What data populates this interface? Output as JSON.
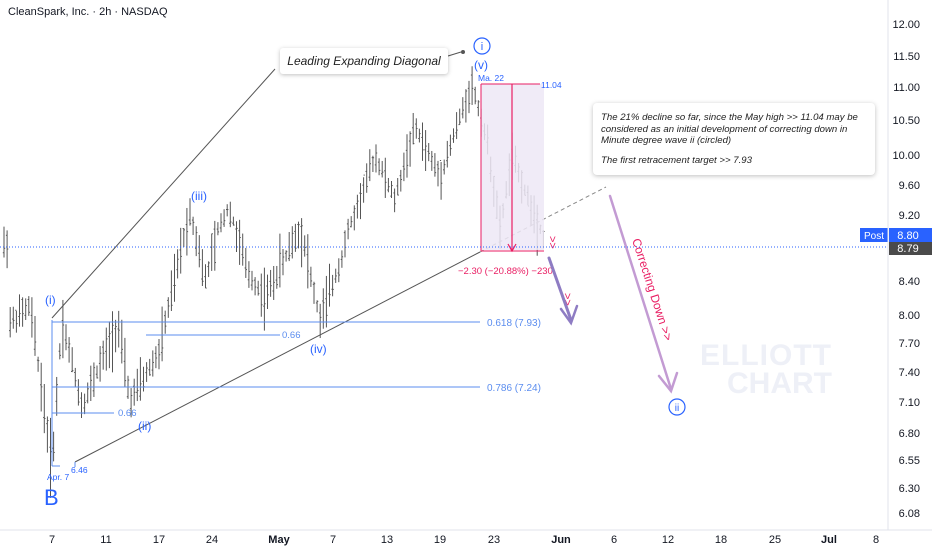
{
  "header": {
    "title": "CleanSpark, Inc. · 2h · NASDAQ"
  },
  "colors": {
    "candle": "#555555",
    "wave_label": "#2962ff",
    "fib_line": "#5b8def",
    "measure": "#e91e63",
    "box_fill": "#ede7f6",
    "projection": "#c39bd3",
    "current_price_bg": "#2962ff",
    "axis_text": "#131722"
  },
  "chart_data": {
    "type": "line",
    "ylim": [
      6.0,
      12.2
    ],
    "yticks": [
      "12.00",
      "11.50",
      "11.00",
      "10.50",
      "10.00",
      "9.60",
      "9.20",
      "8.40",
      "8.00",
      "7.70",
      "7.40",
      "7.10",
      "6.80",
      "6.55",
      "6.30",
      "6.08"
    ],
    "xticks": [
      "7",
      "11",
      "17",
      "24",
      "May",
      "7",
      "13",
      "19",
      "23",
      "Jun",
      "6",
      "12",
      "18",
      "25",
      "Jul",
      "8"
    ],
    "price_path": [
      [
        "Apr. 1",
        7.9
      ],
      [
        "Apr. 4",
        8.1
      ],
      [
        "Apr. 7",
        6.46
      ],
      [
        "Apr. 8",
        7.95
      ],
      [
        "Apr. 10",
        7.05
      ],
      [
        "Apr. 14",
        7.9
      ],
      [
        "Apr. 15",
        7.1
      ],
      [
        "Apr. 17",
        7.6
      ],
      [
        "Apr. 21",
        9.2
      ],
      [
        "Apr. 23",
        8.4
      ],
      [
        "Apr. 25",
        9.3
      ],
      [
        "Apr. 28",
        8.5
      ],
      [
        "May 1",
        8.2
      ],
      [
        "May 5",
        9.0
      ],
      [
        "May 7",
        7.95
      ],
      [
        "May 8",
        8.6
      ],
      [
        "May 12",
        10.0
      ],
      [
        "May 14",
        9.4
      ],
      [
        "May 16",
        10.4
      ],
      [
        "May 19",
        9.7
      ],
      [
        "May 22",
        11.04
      ],
      [
        "May 23",
        10.2
      ],
      [
        "May 26",
        9.0
      ],
      [
        "May 27",
        10.0
      ],
      [
        "May 29",
        8.79
      ]
    ],
    "annotations": {
      "wave_labels": [
        "(i)",
        "(ii)",
        "(iii)",
        "(iv)",
        "(v)"
      ],
      "circled_labels": [
        "i",
        "ii"
      ],
      "big_label": "B",
      "low_date": "Apr. 7",
      "low_value": "6.46",
      "high_date": "Ma. 22",
      "high_value": "11.04",
      "fib_levels": [
        {
          "label": "0.618 (7.93)",
          "value": 7.93
        },
        {
          "label": "0.786 (7.24)",
          "value": 7.24
        }
      ],
      "small_fib_labels": [
        "0.66",
        "0.66"
      ],
      "measure_text": "−2.30 (−20.88%) −230",
      "diagonal_label": "Leading Expanding Diagonal",
      "projection_label": "Correcting Down >>",
      "chevrons": ">>"
    },
    "current_price": {
      "label": "Post",
      "value": "8.80",
      "last": "8.79"
    }
  },
  "note": {
    "line1": "The 21% decline so far, since the May high >> 11.04 may be considered as an initial development of correcting down in Minute degree wave ii (circled)",
    "line2": "The first retracement target >> 7.93"
  },
  "watermark": {
    "line1": "ELLIOTT",
    "line2": "CHART"
  }
}
